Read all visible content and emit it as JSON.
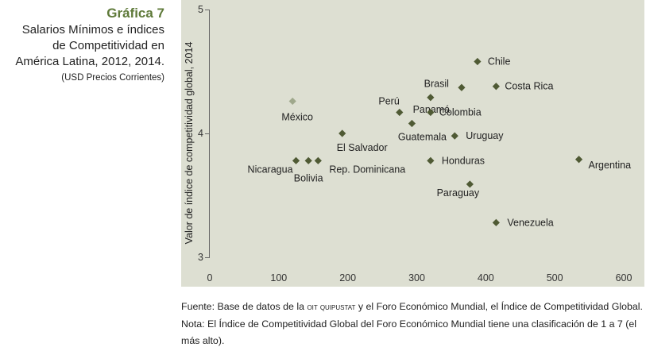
{
  "sidebar": {
    "figure_label": "Gráfica 7",
    "subtitle_lines": [
      "Salarios Mínimos e índices",
      "de Competitividad en",
      "América Latina, 2012, 2014."
    ],
    "units": "(USD Precios Corrientes)"
  },
  "chart_data": {
    "type": "scatter",
    "title": "Salarios Mínimos e índices de Competitividad en América Latina, 2012, 2014.",
    "xlabel": "",
    "ylabel": "Valor de índice de competitividad global, 2014",
    "xlim": [
      0,
      600
    ],
    "ylim": [
      3,
      5
    ],
    "xticks": [
      "0",
      "100",
      "200",
      "300",
      "400",
      "500",
      "600"
    ],
    "yticks": [
      "3",
      "4",
      "5"
    ],
    "grid": false,
    "background": "#dddfd2",
    "marker_color": "#4f5a34",
    "highlight_color": "#9fa88c",
    "points": [
      {
        "label": "Chile",
        "x": 388,
        "y": 4.58
      },
      {
        "label": "Brasil",
        "x": 365,
        "y": 4.37
      },
      {
        "label": "Costa Rica",
        "x": 415,
        "y": 4.38
      },
      {
        "label": "Panamá",
        "x": 320,
        "y": 4.29
      },
      {
        "label": "Perú",
        "x": 275,
        "y": 4.17
      },
      {
        "label": "Colombia",
        "x": 320,
        "y": 4.17
      },
      {
        "label": "México",
        "x": 120,
        "y": 4.26,
        "highlight": true
      },
      {
        "label": "Guatemala",
        "x": 293,
        "y": 4.08
      },
      {
        "label": "Uruguay",
        "x": 355,
        "y": 3.98
      },
      {
        "label": "El Salvador",
        "x": 192,
        "y": 4.0
      },
      {
        "label": "Nicaragua",
        "x": 125,
        "y": 3.78
      },
      {
        "label": "Bolivia",
        "x": 143,
        "y": 3.78
      },
      {
        "label": "Rep. Dominicana",
        "x": 157,
        "y": 3.78
      },
      {
        "label": "Honduras",
        "x": 320,
        "y": 3.78
      },
      {
        "label": "Argentina",
        "x": 535,
        "y": 3.79
      },
      {
        "label": "Paraguay",
        "x": 377,
        "y": 3.59
      },
      {
        "label": "Venezuela",
        "x": 415,
        "y": 3.28
      }
    ]
  },
  "footer": {
    "pre": "Fuente: Base de datos de la ",
    "source_sc": "oit quipustat",
    "post": " y el Foro Económico Mundial, el Índice de Competitividad Global. Nota: El Índice de Competitividad Global del Foro Económico Mundial tiene una clasificación de 1 a 7 (el más alto)."
  }
}
